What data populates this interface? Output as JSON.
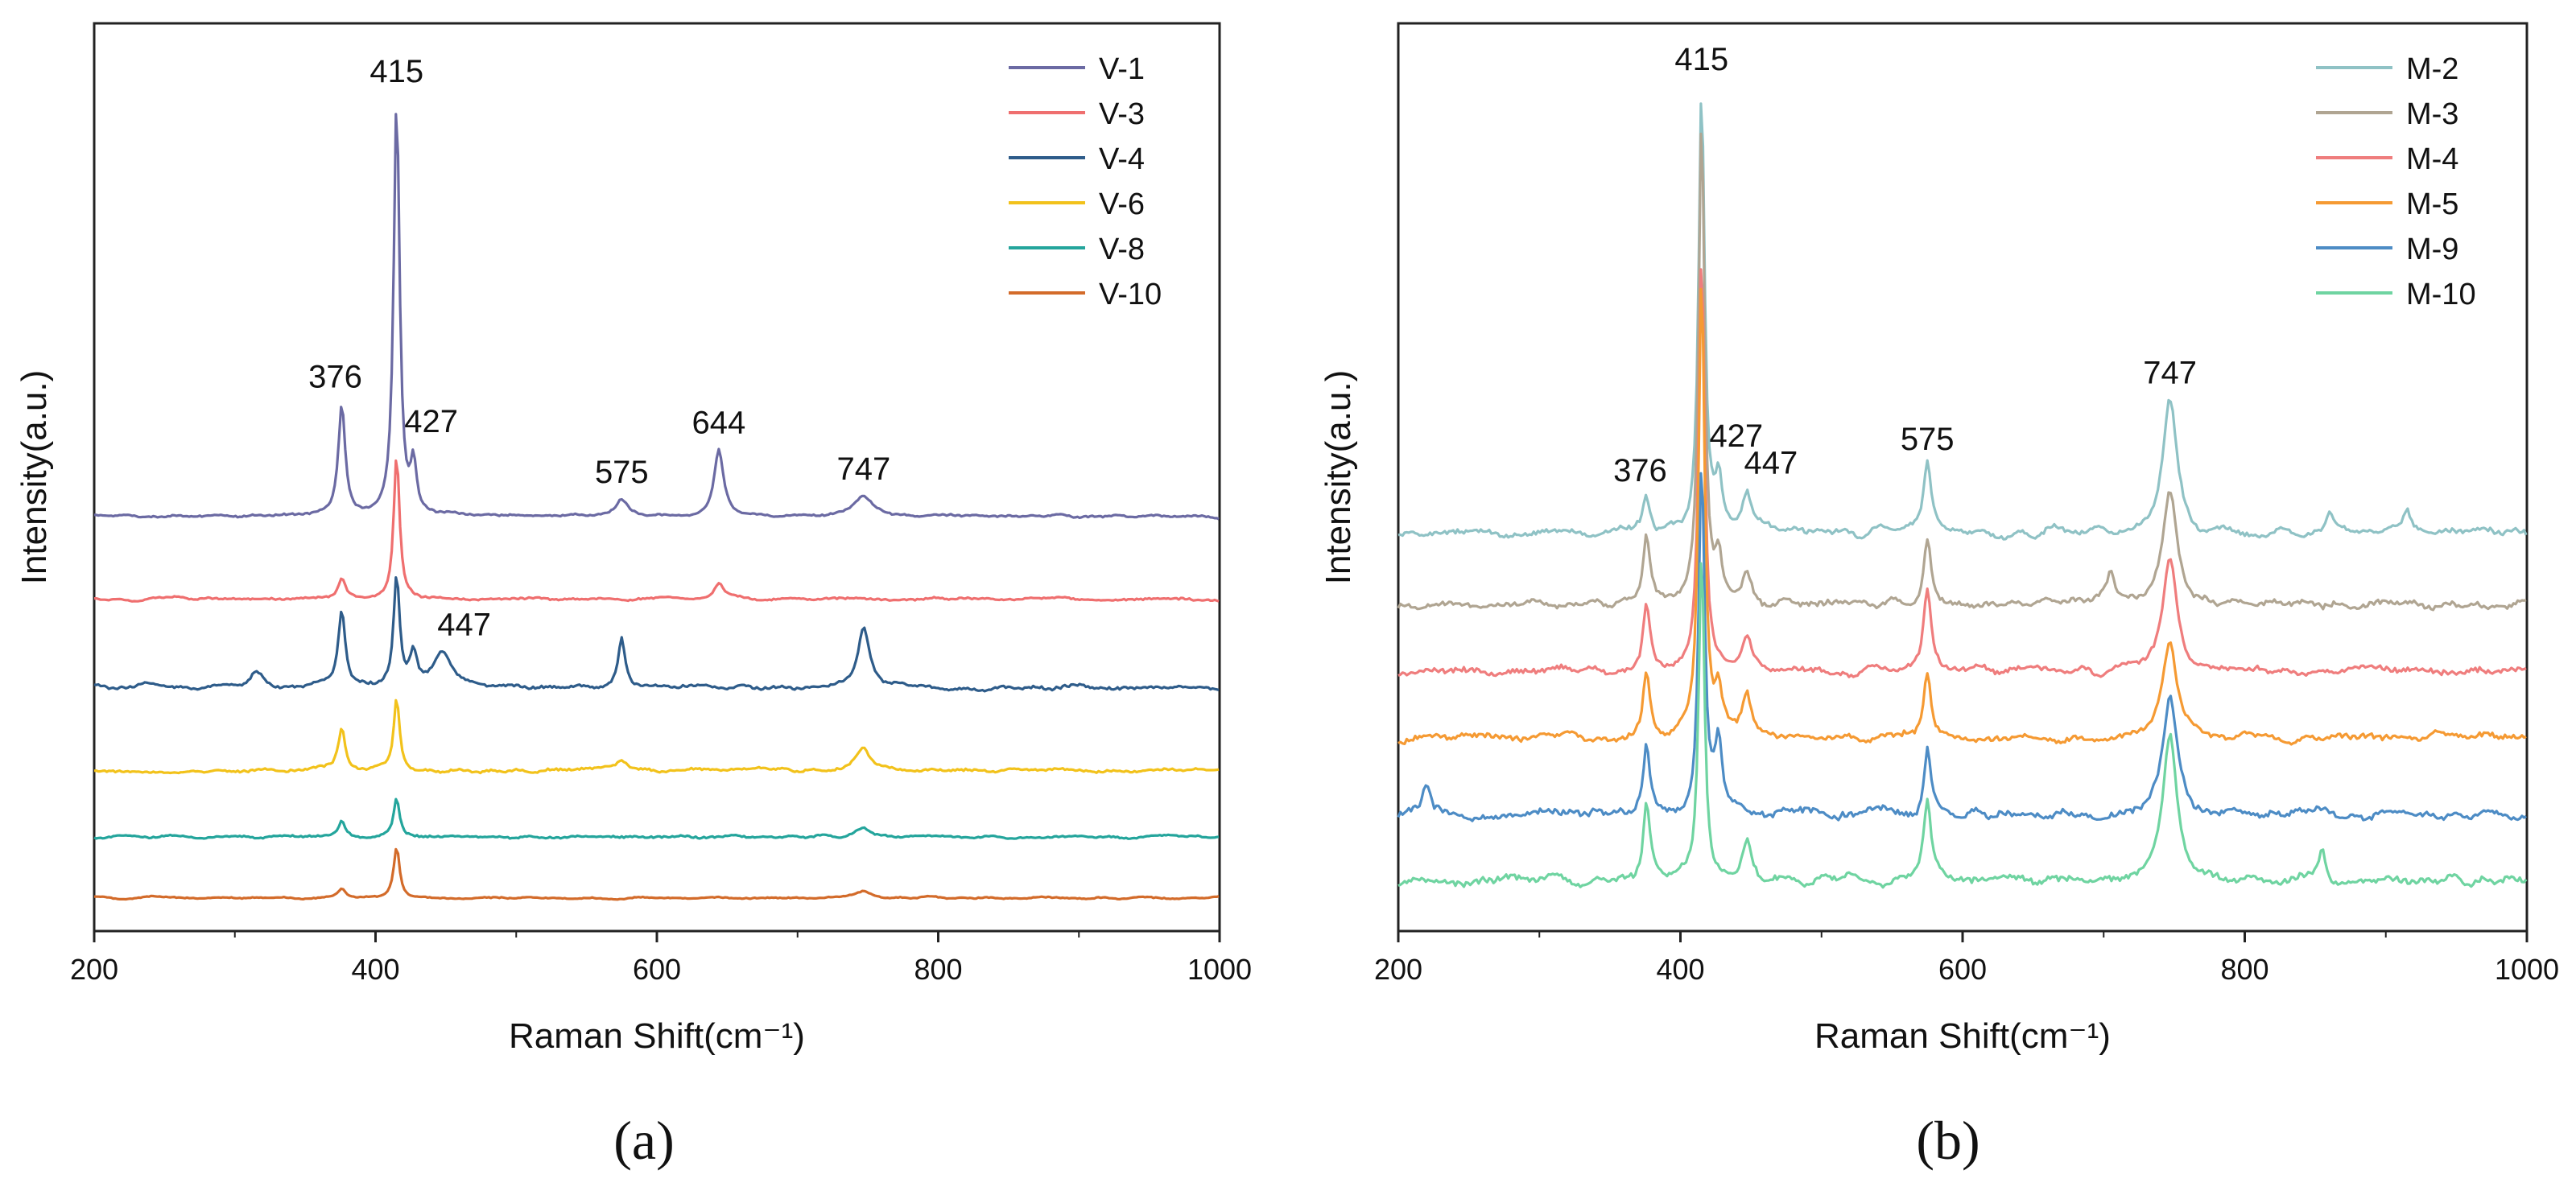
{
  "figure": {
    "panels": [
      "(a)",
      "(b)"
    ]
  },
  "chart_data": [
    {
      "type": "line",
      "panel_label": "(a)",
      "xlabel": "Raman Shift(cm⁻¹)",
      "ylabel": "Intensity(a.u.)",
      "xlim": [
        200,
        1000
      ],
      "xticks": [
        200,
        400,
        600,
        800,
        1000
      ],
      "ylim": [
        0,
        8.2
      ],
      "yticks_shown": false,
      "legend": "top-right",
      "annotations": [
        {
          "text": "415",
          "x": 415
        },
        {
          "text": "376",
          "x": 376
        },
        {
          "text": "427",
          "x": 427
        },
        {
          "text": "575",
          "x": 575
        },
        {
          "text": "644",
          "x": 644
        },
        {
          "text": "747",
          "x": 747
        },
        {
          "text": "447",
          "x": 447
        }
      ],
      "series": [
        {
          "name": "V-1",
          "color": "#6b6aa3",
          "baseline": 3.75,
          "noise": 0.03,
          "peaks": [
            [
              376,
              1.0,
              3
            ],
            [
              415,
              3.75,
              2.5
            ],
            [
              427,
              0.45,
              2.5
            ],
            [
              575,
              0.15,
              5
            ],
            [
              644,
              0.6,
              4
            ],
            [
              747,
              0.18,
              8
            ]
          ]
        },
        {
          "name": "V-3",
          "color": "#ef6f6f",
          "baseline": 3.0,
          "noise": 0.03,
          "peaks": [
            [
              376,
              0.18,
              3
            ],
            [
              415,
              1.3,
              2.5
            ],
            [
              644,
              0.15,
              4
            ]
          ]
        },
        {
          "name": "V-4",
          "color": "#2e5c8a",
          "baseline": 2.2,
          "noise": 0.05,
          "peaks": [
            [
              315,
              0.12,
              6
            ],
            [
              376,
              0.7,
              3
            ],
            [
              415,
              1.0,
              2.5
            ],
            [
              427,
              0.3,
              3
            ],
            [
              447,
              0.3,
              8
            ],
            [
              575,
              0.45,
              3
            ],
            [
              747,
              0.55,
              5
            ]
          ]
        },
        {
          "name": "V-6",
          "color": "#f2c21b",
          "baseline": 1.45,
          "noise": 0.04,
          "peaks": [
            [
              376,
              0.4,
              3
            ],
            [
              415,
              0.65,
              2.5
            ],
            [
              575,
              0.1,
              5
            ],
            [
              747,
              0.2,
              6
            ]
          ]
        },
        {
          "name": "V-8",
          "color": "#24a59c",
          "baseline": 0.85,
          "noise": 0.03,
          "peaks": [
            [
              376,
              0.15,
              3
            ],
            [
              415,
              0.35,
              2.5
            ],
            [
              747,
              0.08,
              6
            ]
          ]
        },
        {
          "name": "V-10",
          "color": "#d36b2a",
          "baseline": 0.3,
          "noise": 0.02,
          "peaks": [
            [
              376,
              0.08,
              3
            ],
            [
              415,
              0.45,
              2.5
            ],
            [
              747,
              0.06,
              6
            ]
          ]
        }
      ]
    },
    {
      "type": "line",
      "panel_label": "(b)",
      "xlabel": "Raman Shift(cm⁻¹)",
      "ylabel": "Intensity(a.u.)",
      "xlim": [
        200,
        1000
      ],
      "xticks": [
        200,
        400,
        600,
        800,
        1000
      ],
      "ylim": [
        0,
        8.2
      ],
      "yticks_shown": false,
      "legend": "top-right",
      "annotations": [
        {
          "text": "415",
          "x": 415
        },
        {
          "text": "376",
          "x": 376
        },
        {
          "text": "427",
          "x": 427
        },
        {
          "text": "447",
          "x": 447
        },
        {
          "text": "575",
          "x": 575
        },
        {
          "text": "747",
          "x": 747
        }
      ],
      "series": [
        {
          "name": "M-2",
          "color": "#8fc2c5",
          "baseline": 3.6,
          "noise": 0.09,
          "peaks": [
            [
              376,
              0.3,
              3
            ],
            [
              415,
              4.0,
              2.5
            ],
            [
              427,
              0.45,
              3
            ],
            [
              447,
              0.35,
              4
            ],
            [
              575,
              0.6,
              3
            ],
            [
              747,
              1.2,
              6
            ],
            [
              860,
              0.2,
              3
            ],
            [
              915,
              0.2,
              3
            ]
          ]
        },
        {
          "name": "M-3",
          "color": "#b0a592",
          "baseline": 2.95,
          "noise": 0.09,
          "peaks": [
            [
              376,
              0.6,
              3
            ],
            [
              415,
              4.4,
              2.5
            ],
            [
              427,
              0.4,
              3
            ],
            [
              447,
              0.3,
              4
            ],
            [
              575,
              0.6,
              3
            ],
            [
              705,
              0.25,
              3
            ],
            [
              747,
              1.0,
              6
            ]
          ]
        },
        {
          "name": "M-4",
          "color": "#ef7d7d",
          "baseline": 2.35,
          "noise": 0.09,
          "peaks": [
            [
              376,
              0.6,
              3
            ],
            [
              415,
              3.8,
              2.5
            ],
            [
              447,
              0.3,
              4
            ],
            [
              575,
              0.7,
              3
            ],
            [
              747,
              1.0,
              6
            ]
          ]
        },
        {
          "name": "M-5",
          "color": "#f59a33",
          "baseline": 1.75,
          "noise": 0.09,
          "peaks": [
            [
              376,
              0.6,
              3
            ],
            [
              415,
              4.2,
              2.5
            ],
            [
              427,
              0.35,
              3
            ],
            [
              447,
              0.4,
              4
            ],
            [
              575,
              0.6,
              3
            ],
            [
              747,
              0.9,
              6
            ]
          ]
        },
        {
          "name": "M-9",
          "color": "#4d8cc5",
          "baseline": 1.05,
          "noise": 0.11,
          "peaks": [
            [
              220,
              0.3,
              3
            ],
            [
              376,
              0.6,
              3
            ],
            [
              415,
              3.2,
              2.5
            ],
            [
              427,
              0.6,
              3
            ],
            [
              575,
              0.6,
              3
            ],
            [
              747,
              1.1,
              6
            ]
          ]
        },
        {
          "name": "M-10",
          "color": "#6fd4a1",
          "baseline": 0.45,
          "noise": 0.11,
          "peaks": [
            [
              376,
              0.7,
              3
            ],
            [
              415,
              3.0,
              2.5
            ],
            [
              447,
              0.35,
              4
            ],
            [
              575,
              0.7,
              3
            ],
            [
              747,
              1.3,
              6
            ],
            [
              855,
              0.3,
              3
            ]
          ]
        }
      ]
    }
  ]
}
